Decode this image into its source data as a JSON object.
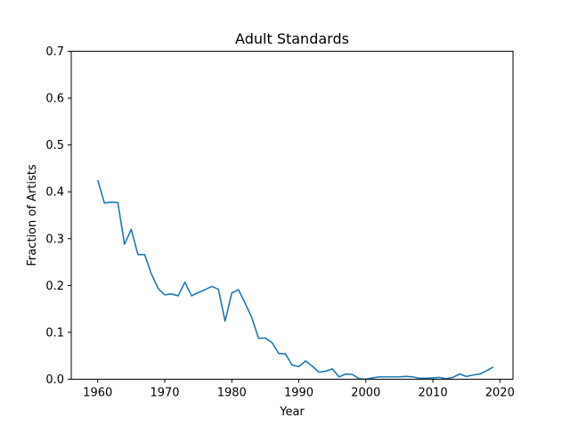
{
  "chart_data": {
    "type": "line",
    "title": "Adult Standards",
    "xlabel": "Year",
    "ylabel": "Fraction of Artists",
    "xlim": [
      1956.05,
      2021.95
    ],
    "ylim": [
      0,
      0.7
    ],
    "x_ticks": [
      1960,
      1970,
      1980,
      1990,
      2000,
      2010,
      2020
    ],
    "y_ticks": [
      0.0,
      0.1,
      0.2,
      0.3,
      0.4,
      0.5,
      0.6,
      0.7
    ],
    "grid": false,
    "series": [
      {
        "color": "#1f77b4",
        "x": [
          1960,
          1961,
          1962,
          1963,
          1964,
          1965,
          1966,
          1967,
          1968,
          1969,
          1970,
          1971,
          1972,
          1973,
          1974,
          1975,
          1976,
          1977,
          1978,
          1979,
          1980,
          1981,
          1982,
          1983,
          1984,
          1985,
          1986,
          1987,
          1988,
          1989,
          1990,
          1991,
          1992,
          1993,
          1994,
          1995,
          1996,
          1997,
          1998,
          1999,
          2000,
          2001,
          2002,
          2003,
          2004,
          2005,
          2006,
          2007,
          2008,
          2009,
          2010,
          2011,
          2012,
          2013,
          2014,
          2015,
          2016,
          2017,
          2018,
          2019
        ],
        "y": [
          0.425,
          0.376,
          0.378,
          0.377,
          0.288,
          0.32,
          0.266,
          0.266,
          0.225,
          0.194,
          0.18,
          0.182,
          0.178,
          0.207,
          0.178,
          0.185,
          0.191,
          0.198,
          0.192,
          0.124,
          0.184,
          0.191,
          0.162,
          0.131,
          0.087,
          0.088,
          0.078,
          0.055,
          0.054,
          0.03,
          0.027,
          0.039,
          0.028,
          0.015,
          0.017,
          0.022,
          0.005,
          0.011,
          0.01,
          0.001,
          0.0,
          0.003,
          0.005,
          0.005,
          0.005,
          0.005,
          0.006,
          0.005,
          0.002,
          0.002,
          0.003,
          0.004,
          0.001,
          0.004,
          0.011,
          0.006,
          0.009,
          0.011,
          0.018,
          0.026
        ]
      }
    ]
  }
}
